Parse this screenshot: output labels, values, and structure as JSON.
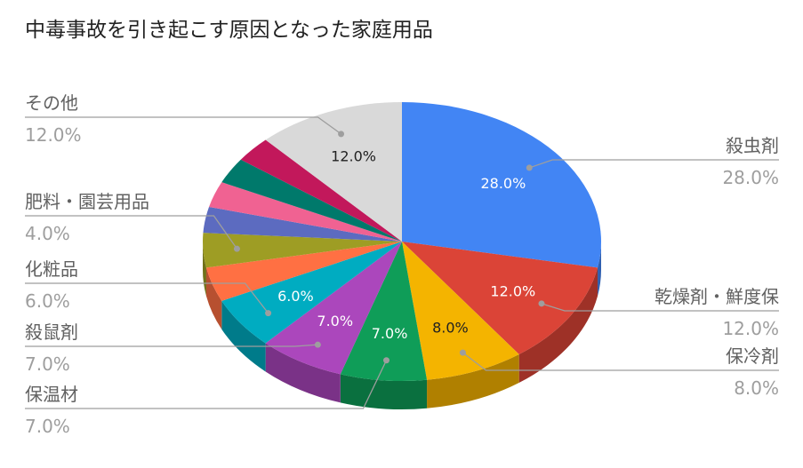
{
  "chart_data": {
    "type": "pie",
    "title": "中毒事故を引き起こす原因となった家庭用品",
    "slices": [
      {
        "label": "殺虫剤",
        "value": 28.0,
        "display": "28.0%",
        "color": "#4285f4",
        "side_color": "#2f5fb0",
        "inner_text_color": "#ffffff"
      },
      {
        "label": "乾燥剤・鮮度保",
        "value": 12.0,
        "display": "12.0%",
        "color": "#db4437",
        "side_color": "#9e3127",
        "inner_text_color": "#ffffff"
      },
      {
        "label": "保冷剤",
        "value": 8.0,
        "display": "8.0%",
        "color": "#f4b400",
        "side_color": "#b08000",
        "inner_text_color": "#212121"
      },
      {
        "label": "保温材",
        "value": 7.0,
        "display": "7.0%",
        "color": "#0f9d58",
        "side_color": "#0a703f",
        "inner_text_color": "#ffffff"
      },
      {
        "label": "殺鼠剤",
        "value": 7.0,
        "display": "7.0%",
        "color": "#ab47bc",
        "side_color": "#7a3287",
        "inner_text_color": "#ffffff"
      },
      {
        "label": "化粧品",
        "value": 6.0,
        "display": "6.0%",
        "color": "#00acc1",
        "side_color": "#007b8a",
        "inner_text_color": "#ffffff"
      },
      {
        "label": "",
        "value": 4.0,
        "display": "",
        "color": "#ff7043",
        "side_color": "#b75030",
        "inner_text_color": "#ffffff"
      },
      {
        "label": "肥料・園芸用品",
        "value": 4.0,
        "display": "4.0%",
        "color": "#9e9d24",
        "side_color": "#71711a",
        "inner_text_color": "#ffffff"
      },
      {
        "label": "",
        "value": 3.0,
        "display": "",
        "color": "#5c6bc0",
        "side_color": "#424d8a",
        "inner_text_color": "#ffffff"
      },
      {
        "label": "",
        "value": 3.0,
        "display": "",
        "color": "#f06292",
        "side_color": "#ac4669",
        "inner_text_color": "#ffffff"
      },
      {
        "label": "",
        "value": 3.0,
        "display": "",
        "color": "#00796b",
        "side_color": "#00574d",
        "inner_text_color": "#ffffff"
      },
      {
        "label": "",
        "value": 3.0,
        "display": "",
        "color": "#c2185b",
        "side_color": "#8b1141",
        "inner_text_color": "#ffffff"
      },
      {
        "label": "その他",
        "value": 12.0,
        "display": "12.0%",
        "color": "#d9d9d9",
        "side_color": "#9c9c9c",
        "inner_text_color": "#212121"
      }
    ],
    "legend": "callouts with leader lines",
    "colors": {
      "title": "#212121",
      "label": "#616161",
      "value": "#9e9e9e",
      "leader": "#9e9e9e"
    }
  }
}
